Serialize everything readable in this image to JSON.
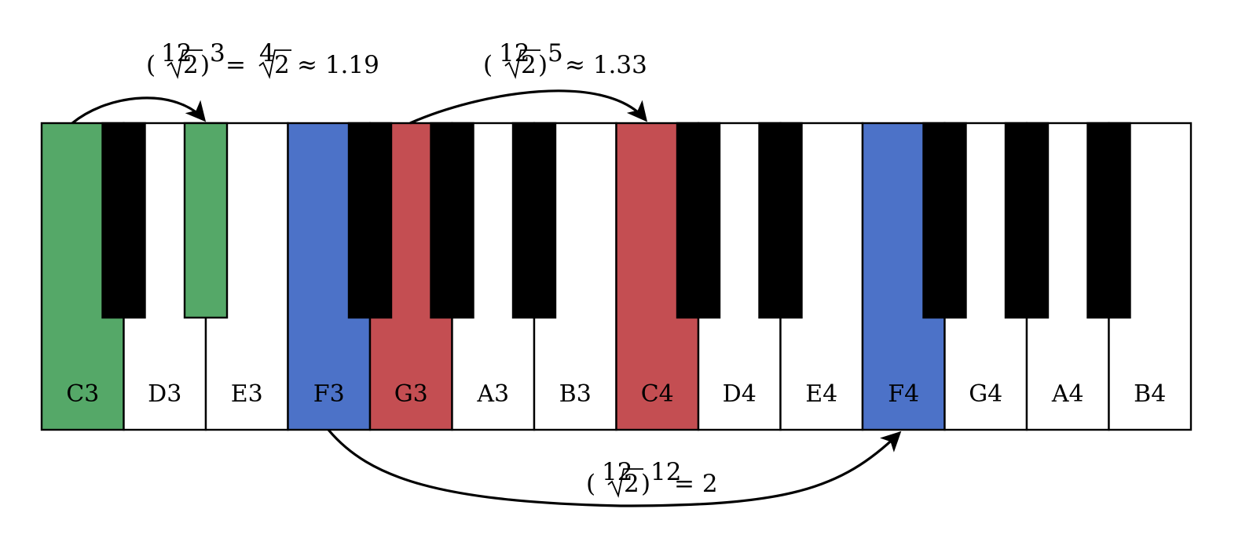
{
  "colors": {
    "white_key": "#ffffff",
    "black_key": "#000000",
    "green": "#55a868",
    "blue": "#4c72c8",
    "red": "#c44e52",
    "outline": "#000000"
  },
  "keyboard": {
    "white_keys": [
      {
        "label": "C3",
        "highlight": "green"
      },
      {
        "label": "D3",
        "highlight": null
      },
      {
        "label": "E3",
        "highlight": null
      },
      {
        "label": "F3",
        "highlight": "blue"
      },
      {
        "label": "G3",
        "highlight": "red"
      },
      {
        "label": "A3",
        "highlight": null
      },
      {
        "label": "B3",
        "highlight": null
      },
      {
        "label": "C4",
        "highlight": "red"
      },
      {
        "label": "D4",
        "highlight": null
      },
      {
        "label": "E4",
        "highlight": null
      },
      {
        "label": "F4",
        "highlight": "blue"
      },
      {
        "label": "G4",
        "highlight": null
      },
      {
        "label": "A4",
        "highlight": null
      },
      {
        "label": "B4",
        "highlight": null
      }
    ],
    "black_keys": [
      {
        "after_white_index": 0,
        "highlight": null
      },
      {
        "after_white_index": 1,
        "highlight": "green"
      },
      {
        "after_white_index": 3,
        "highlight": null
      },
      {
        "after_white_index": 4,
        "highlight": null
      },
      {
        "after_white_index": 5,
        "highlight": null
      },
      {
        "after_white_index": 7,
        "highlight": null
      },
      {
        "after_white_index": 8,
        "highlight": null
      },
      {
        "after_white_index": 10,
        "highlight": null
      },
      {
        "after_white_index": 11,
        "highlight": null
      },
      {
        "after_white_index": 12,
        "highlight": null
      }
    ]
  },
  "intervals": [
    {
      "from": "C3",
      "to": "D#3",
      "base": "2",
      "root_index": "12",
      "exponent": "3",
      "equals_root_index": "4",
      "equals_base": "2",
      "approx": "≈ 1.19",
      "eq": "="
    },
    {
      "from": "G3",
      "to": "C4",
      "base": "2",
      "root_index": "12",
      "exponent": "5",
      "approx": "≈ 1.33"
    },
    {
      "from": "F3",
      "to": "F4",
      "base": "2",
      "root_index": "12",
      "exponent": "12",
      "result": "= 2"
    }
  ]
}
